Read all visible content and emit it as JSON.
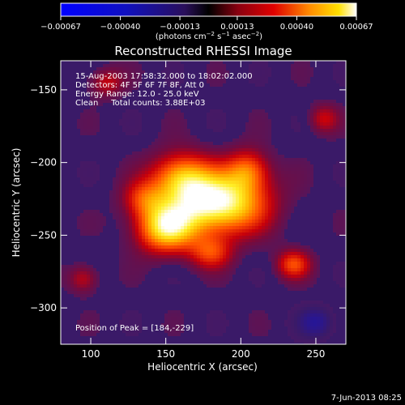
{
  "colorbar": {
    "ticks": [
      "-0.00067",
      "-0.00040",
      "-0.00013",
      "0.00013",
      "0.00040",
      "0.00067"
    ],
    "units_main": "(photons cm",
    "units_sup1": "−2",
    "units_mid": " s",
    "units_sup2": "−1",
    "units_end": " asec",
    "units_sup3": "−2",
    "units_close": ")",
    "range": [
      -0.00067,
      0.00067
    ]
  },
  "chart_data": {
    "type": "heatmap",
    "title": "Reconstructed RHESSI Image",
    "xlabel": "Heliocentric X (arcsec)",
    "ylabel": "Heliocentric Y (arcsec)",
    "xlim": [
      80,
      270
    ],
    "ylim": [
      -325,
      -130
    ],
    "xticks": [
      100,
      150,
      200,
      250
    ],
    "yticks": [
      -150,
      -200,
      -250,
      -300
    ],
    "grid": false,
    "peak": {
      "x": 184,
      "y": -229
    },
    "sources": [
      {
        "x": 185,
        "y": -228,
        "sx": 22,
        "sy": 15,
        "a": 1.0
      },
      {
        "x": 150,
        "y": -245,
        "sx": 14,
        "sy": 12,
        "a": 0.8
      },
      {
        "x": 160,
        "y": -210,
        "sx": 14,
        "sy": 12,
        "a": 0.6
      },
      {
        "x": 205,
        "y": -205,
        "sx": 10,
        "sy": 10,
        "a": 0.45
      },
      {
        "x": 135,
        "y": -225,
        "sx": 10,
        "sy": 9,
        "a": 0.35
      },
      {
        "x": 180,
        "y": -262,
        "sx": 10,
        "sy": 8,
        "a": 0.4
      },
      {
        "x": 235,
        "y": -270,
        "sx": 8,
        "sy": 7,
        "a": 0.45
      },
      {
        "x": 255,
        "y": -170,
        "sx": 7,
        "sy": 7,
        "a": 0.3
      },
      {
        "x": 110,
        "y": -145,
        "sx": 8,
        "sy": 7,
        "a": 0.3
      },
      {
        "x": 95,
        "y": -280,
        "sx": 7,
        "sy": 7,
        "a": 0.3
      },
      {
        "x": 250,
        "y": -310,
        "sx": 8,
        "sy": 7,
        "a": -0.4
      }
    ]
  },
  "annotations": {
    "time": "15-Aug-2003 17:58:32.000 to 18:02:02.000",
    "detectors": "Detectors: 4F 5F 6F 7F 8F, Att 0",
    "energy": "Energy Range: 12.0 - 25.0 keV",
    "clean": "Clean     Total counts: 3.88E+03",
    "peak": "Position of Peak = [184,-229]"
  },
  "footer": {
    "timestamp": "7-Jun-2013 08:25"
  }
}
